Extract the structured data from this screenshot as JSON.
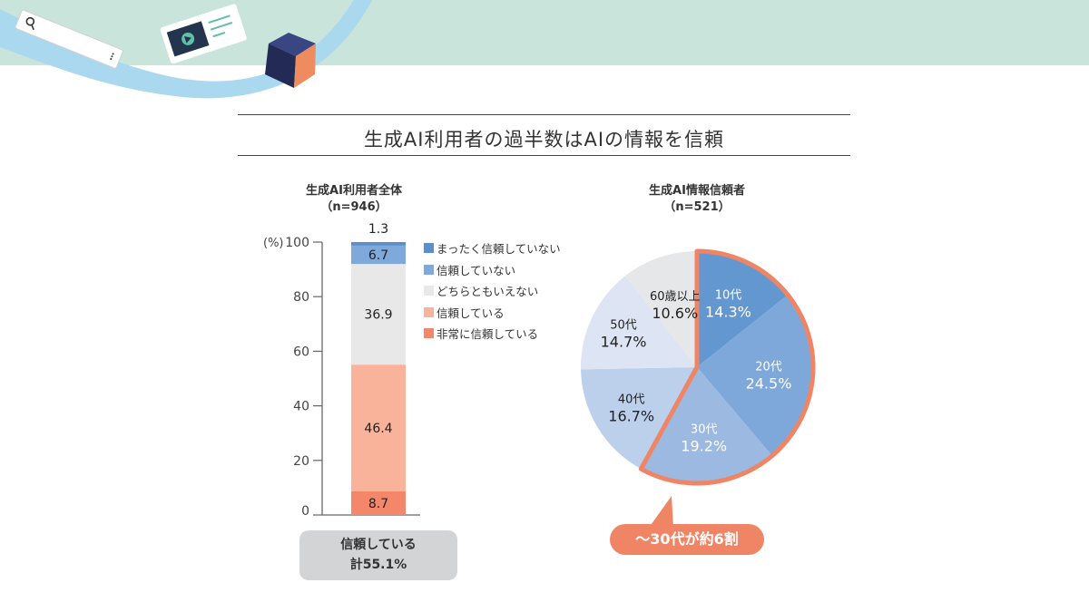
{
  "header": {
    "title": "生成AI利用者の過半数はAIの情報を信頼"
  },
  "decoration": {
    "icons": [
      "search-bar-icon",
      "video-card-icon",
      "cube-icon"
    ],
    "colors": {
      "band": "#c9e4da",
      "wave": "#a9d8ef",
      "cube_dark": "#2b3566",
      "cube_orange": "#ee8b5f"
    }
  },
  "chart_data": [
    {
      "type": "bar",
      "subtype": "stacked-100",
      "title": "生成AI利用者全体",
      "sample": "（n=946）",
      "ylabel": "(%)",
      "ylim": [
        0,
        100
      ],
      "yticks": [
        "0",
        "20",
        "40",
        "60",
        "80",
        "100"
      ],
      "grid": false,
      "legend_position": "right",
      "series": [
        {
          "name": "非常に信頼している",
          "value": 8.7,
          "label": "8.7",
          "color": "#f4866a"
        },
        {
          "name": "信頼している",
          "value": 46.4,
          "label": "46.4",
          "color": "#f9b39b"
        },
        {
          "name": "どちらともいえない",
          "value": 36.9,
          "label": "36.9",
          "color": "#e8e8e8"
        },
        {
          "name": "信頼していない",
          "value": 6.7,
          "label": "6.7",
          "color": "#7fa8db"
        },
        {
          "name": "まったく信頼していない",
          "value": 1.3,
          "label": "1.3",
          "color": "#5b8fcc"
        }
      ],
      "legend_order": [
        "まったく信頼していない",
        "信頼していない",
        "どちらともいえない",
        "信頼している",
        "非常に信頼している"
      ],
      "annotation": {
        "line1": "信頼している",
        "line2": "計55.1%",
        "color": "#d3d4d6"
      }
    },
    {
      "type": "pie",
      "title": "生成AI情報信頼者",
      "sample": "（n=521）",
      "slices": [
        {
          "label": "10代",
          "value": 14.3,
          "text": "14.3%",
          "color": "#6397d0",
          "text_color": "#ffffff"
        },
        {
          "label": "20代",
          "value": 24.5,
          "text": "24.5%",
          "color": "#7ea8da",
          "text_color": "#ffffff"
        },
        {
          "label": "30代",
          "value": 19.2,
          "text": "19.2%",
          "color": "#9cb9e1",
          "text_color": "#ffffff"
        },
        {
          "label": "40代",
          "value": 16.7,
          "text": "16.7%",
          "color": "#bccfeb",
          "text_color": "#222222"
        },
        {
          "label": "50代",
          "value": 14.7,
          "text": "14.7%",
          "color": "#dde4f3",
          "text_color": "#222222"
        },
        {
          "label": "60歳以上",
          "value": 10.6,
          "text": "10.6%",
          "color": "#e6e7e9",
          "text_color": "#222222"
        }
      ],
      "highlight": {
        "slices": [
          "10代",
          "20代",
          "30代"
        ],
        "color": "#f08566"
      },
      "annotation": {
        "text": "〜30代が約6割",
        "color": "#f08566"
      }
    }
  ]
}
